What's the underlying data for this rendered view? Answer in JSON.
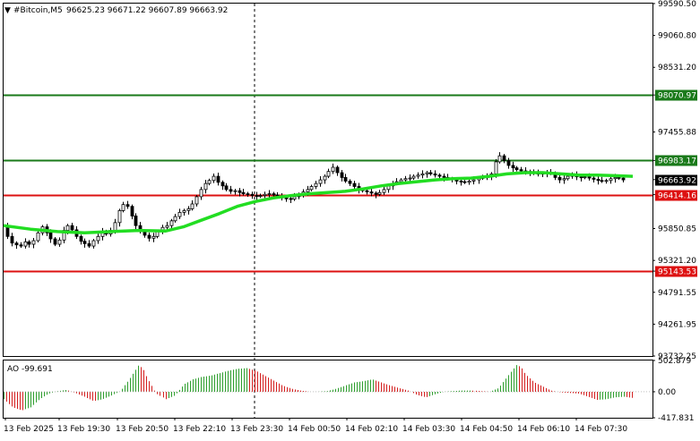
{
  "header": {
    "symbol": "#Bitcoin,M5",
    "ohlc": "96625.23 96671.22 96607.89 96663.92"
  },
  "ao_label": "AO -99.691",
  "colors": {
    "background": "#ffffff",
    "candle": "#000000",
    "ma_line": "#22dd22",
    "resistance": "#1a7a1a",
    "support": "#dd1111",
    "ao_up": "#2e9e2e",
    "ao_down": "#d42020",
    "grid_frame": "#000000"
  },
  "chart_data": [
    {
      "type": "candlestick",
      "title": "#Bitcoin,M5",
      "ohlc_text": "96625.23 96671.22 96607.89 96663.92",
      "ylim": [
        93732.25,
        99590.5
      ],
      "y_ticks": [
        "99590.50",
        "99060.80",
        "98531.20",
        "98070.97",
        "97455.88",
        "96983.17",
        "96663.92",
        "96414.16",
        "95850.85",
        "95321.20",
        "95143.53",
        "94791.55",
        "94261.95",
        "93732.25"
      ],
      "x_tick_labels": [
        "13 Feb 2025",
        "13 Feb 19:30",
        "13 Feb 20:50",
        "13 Feb 22:10",
        "13 Feb 23:30",
        "14 Feb 00:50",
        "14 Feb 02:10",
        "14 Feb 03:30",
        "14 Feb 04:50",
        "14 Feb 06:10",
        "14 Feb 07:30"
      ],
      "current_price": 96663.92,
      "levels": [
        {
          "price": 98070.97,
          "label": "98070.97",
          "color": "#1a7a1a"
        },
        {
          "price": 96983.17,
          "label": "96983.17",
          "color": "#1a7a1a"
        },
        {
          "price": 96414.16,
          "label": "96414.16",
          "color": "#dd1111"
        },
        {
          "price": 95143.53,
          "label": "95143.53",
          "color": "#dd1111"
        }
      ],
      "price_path": [
        [
          0,
          95900
        ],
        [
          4,
          95720
        ],
        [
          9,
          95610
        ],
        [
          14,
          95580
        ],
        [
          19,
          95560
        ],
        [
          24,
          95630
        ],
        [
          28,
          95590
        ],
        [
          33,
          95650
        ],
        [
          38,
          95780
        ],
        [
          43,
          95880
        ],
        [
          48,
          95780
        ],
        [
          52,
          95680
        ],
        [
          57,
          95590
        ],
        [
          62,
          95660
        ],
        [
          67,
          95820
        ],
        [
          71,
          95900
        ],
        [
          76,
          95830
        ],
        [
          81,
          95720
        ],
        [
          86,
          95640
        ],
        [
          90,
          95600
        ],
        [
          95,
          95560
        ],
        [
          100,
          95650
        ],
        [
          105,
          95720
        ],
        [
          110,
          95800
        ],
        [
          114,
          95760
        ],
        [
          119,
          95820
        ],
        [
          124,
          95950
        ],
        [
          129,
          96150
        ],
        [
          133,
          96250
        ],
        [
          138,
          96220
        ],
        [
          143,
          96060
        ],
        [
          147,
          95900
        ],
        [
          152,
          95800
        ],
        [
          157,
          95740
        ],
        [
          162,
          95690
        ],
        [
          167,
          95720
        ],
        [
          171,
          95800
        ],
        [
          176,
          95870
        ],
        [
          181,
          95900
        ],
        [
          186,
          95980
        ],
        [
          190,
          96050
        ],
        [
          195,
          96120
        ],
        [
          200,
          96150
        ],
        [
          205,
          96180
        ],
        [
          209,
          96260
        ],
        [
          214,
          96380
        ],
        [
          219,
          96500
        ],
        [
          224,
          96600
        ],
        [
          228,
          96650
        ],
        [
          233,
          96720
        ],
        [
          238,
          96620
        ],
        [
          243,
          96560
        ],
        [
          247,
          96500
        ],
        [
          252,
          96470
        ],
        [
          257,
          96480
        ],
        [
          262,
          96450
        ],
        [
          266,
          96430
        ],
        [
          271,
          96420
        ],
        [
          276,
          96400
        ],
        [
          281,
          96390
        ],
        [
          285,
          96400
        ],
        [
          290,
          96420
        ],
        [
          295,
          96430
        ],
        [
          300,
          96410
        ],
        [
          304,
          96380
        ],
        [
          309,
          96360
        ],
        [
          314,
          96350
        ],
        [
          319,
          96340
        ],
        [
          323,
          96380
        ],
        [
          328,
          96420
        ],
        [
          333,
          96460
        ],
        [
          338,
          96500
        ],
        [
          342,
          96550
        ],
        [
          347,
          96600
        ],
        [
          352,
          96660
        ],
        [
          357,
          96720
        ],
        [
          361,
          96800
        ],
        [
          366,
          96870
        ],
        [
          371,
          96780
        ],
        [
          376,
          96700
        ],
        [
          380,
          96640
        ],
        [
          385,
          96600
        ],
        [
          390,
          96550
        ],
        [
          395,
          96500
        ],
        [
          399,
          96480
        ],
        [
          404,
          96460
        ],
        [
          409,
          96440
        ],
        [
          414,
          96420
        ],
        [
          418,
          96450
        ],
        [
          423,
          96500
        ],
        [
          428,
          96560
        ],
        [
          433,
          96600
        ],
        [
          437,
          96630
        ],
        [
          442,
          96660
        ],
        [
          447,
          96680
        ],
        [
          452,
          96690
        ],
        [
          456,
          96720
        ],
        [
          461,
          96740
        ],
        [
          466,
          96760
        ],
        [
          471,
          96780
        ],
        [
          475,
          96760
        ],
        [
          480,
          96740
        ],
        [
          485,
          96720
        ],
        [
          490,
          96700
        ],
        [
          494,
          96680
        ],
        [
          499,
          96660
        ],
        [
          504,
          96640
        ],
        [
          509,
          96630
        ],
        [
          513,
          96620
        ],
        [
          518,
          96640
        ],
        [
          523,
          96660
        ],
        [
          528,
          96690
        ],
        [
          532,
          96700
        ],
        [
          537,
          96710
        ],
        [
          542,
          96760
        ],
        [
          547,
          96960
        ],
        [
          551,
          97060
        ],
        [
          556,
          96980
        ],
        [
          561,
          96900
        ],
        [
          566,
          96860
        ],
        [
          570,
          96830
        ],
        [
          575,
          96810
        ],
        [
          580,
          96800
        ],
        [
          585,
          96790
        ],
        [
          589,
          96770
        ],
        [
          594,
          96760
        ],
        [
          599,
          96770
        ],
        [
          604,
          96780
        ],
        [
          608,
          96770
        ],
        [
          613,
          96700
        ],
        [
          618,
          96660
        ],
        [
          623,
          96680
        ],
        [
          627,
          96720
        ],
        [
          632,
          96740
        ],
        [
          637,
          96710
        ],
        [
          642,
          96700
        ],
        [
          646,
          96710
        ],
        [
          651,
          96690
        ],
        [
          656,
          96670
        ],
        [
          661,
          96650
        ],
        [
          665,
          96640
        ],
        [
          670,
          96650
        ],
        [
          675,
          96680
        ],
        [
          680,
          96700
        ],
        [
          684,
          96690
        ],
        [
          689,
          96660
        ]
      ],
      "ma_path": [
        [
          0,
          95900
        ],
        [
          30,
          95840
        ],
        [
          60,
          95800
        ],
        [
          90,
          95780
        ],
        [
          120,
          95800
        ],
        [
          150,
          95820
        ],
        [
          180,
          95810
        ],
        [
          200,
          95880
        ],
        [
          220,
          95990
        ],
        [
          240,
          96100
        ],
        [
          260,
          96220
        ],
        [
          280,
          96300
        ],
        [
          300,
          96360
        ],
        [
          320,
          96400
        ],
        [
          340,
          96430
        ],
        [
          360,
          96450
        ],
        [
          380,
          96470
        ],
        [
          400,
          96510
        ],
        [
          420,
          96560
        ],
        [
          440,
          96600
        ],
        [
          460,
          96630
        ],
        [
          480,
          96660
        ],
        [
          500,
          96680
        ],
        [
          520,
          96690
        ],
        [
          540,
          96720
        ],
        [
          560,
          96760
        ],
        [
          580,
          96780
        ],
        [
          600,
          96780
        ],
        [
          620,
          96760
        ],
        [
          640,
          96740
        ],
        [
          660,
          96740
        ],
        [
          680,
          96730
        ],
        [
          700,
          96720
        ]
      ],
      "ao": {
        "ylim": [
          -417.831,
          502.879
        ],
        "ticks": [
          "502.879",
          "0.00",
          "-417.831"
        ],
        "current": -99.691,
        "points": [
          [
            0,
            -120
          ],
          [
            10,
            -250
          ],
          [
            20,
            -300
          ],
          [
            30,
            -250
          ],
          [
            40,
            -120
          ],
          [
            50,
            -30
          ],
          [
            60,
            10
          ],
          [
            70,
            30
          ],
          [
            80,
            -20
          ],
          [
            90,
            -80
          ],
          [
            100,
            -150
          ],
          [
            110,
            -120
          ],
          [
            120,
            -60
          ],
          [
            130,
            10
          ],
          [
            140,
            200
          ],
          [
            150,
            420
          ],
          [
            155,
            380
          ],
          [
            160,
            220
          ],
          [
            170,
            -30
          ],
          [
            180,
            -120
          ],
          [
            190,
            -60
          ],
          [
            200,
            120
          ],
          [
            210,
            200
          ],
          [
            220,
            240
          ],
          [
            230,
            260
          ],
          [
            240,
            300
          ],
          [
            250,
            340
          ],
          [
            260,
            370
          ],
          [
            270,
            380
          ],
          [
            280,
            340
          ],
          [
            290,
            260
          ],
          [
            300,
            180
          ],
          [
            310,
            100
          ],
          [
            320,
            50
          ],
          [
            330,
            20
          ],
          [
            340,
            0
          ],
          [
            350,
            0
          ],
          [
            360,
            10
          ],
          [
            370,
            50
          ],
          [
            380,
            100
          ],
          [
            390,
            150
          ],
          [
            400,
            170
          ],
          [
            410,
            200
          ],
          [
            420,
            150
          ],
          [
            430,
            100
          ],
          [
            440,
            60
          ],
          [
            450,
            20
          ],
          [
            460,
            -50
          ],
          [
            470,
            -90
          ],
          [
            480,
            -40
          ],
          [
            490,
            0
          ],
          [
            500,
            10
          ],
          [
            510,
            20
          ],
          [
            520,
            20
          ],
          [
            530,
            10
          ],
          [
            540,
            0
          ],
          [
            550,
            60
          ],
          [
            560,
            250
          ],
          [
            570,
            430
          ],
          [
            575,
            400
          ],
          [
            580,
            280
          ],
          [
            590,
            150
          ],
          [
            600,
            80
          ],
          [
            610,
            10
          ],
          [
            620,
            -10
          ],
          [
            630,
            -20
          ],
          [
            640,
            -30
          ],
          [
            650,
            -80
          ],
          [
            660,
            -130
          ],
          [
            670,
            -120
          ],
          [
            680,
            -90
          ],
          [
            690,
            -80
          ],
          [
            700,
            -100
          ]
        ]
      }
    }
  ]
}
